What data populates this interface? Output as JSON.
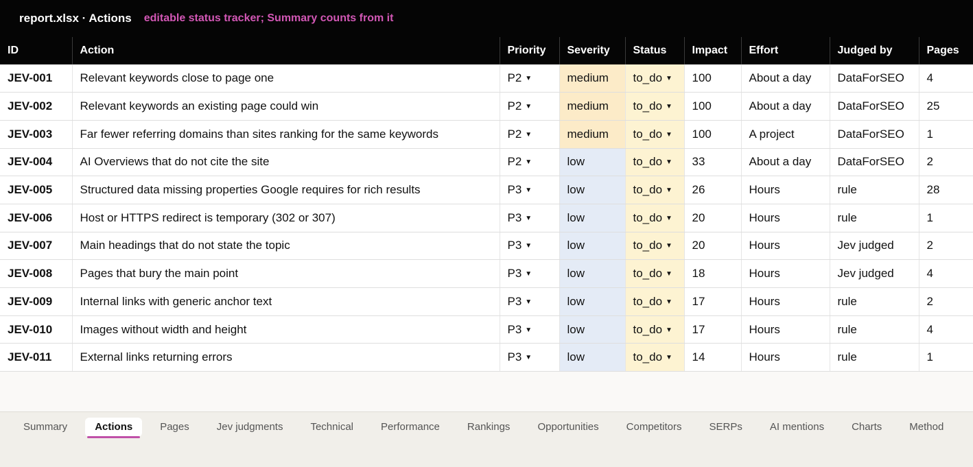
{
  "window": {
    "title": "report.xlsx · Actions",
    "note": "editable status tracker; Summary counts from it"
  },
  "colors": {
    "header_bg": "#050505",
    "note": "#d257b5",
    "severity_medium": "#fcebc8",
    "severity_low": "#e4ebf6",
    "status_cell": "#fdf3d2",
    "active_tab_underline": "#c050a8"
  },
  "table": {
    "columns": [
      "ID",
      "Action",
      "Priority",
      "Severity",
      "Status",
      "Impact",
      "Effort",
      "Judged by",
      "Pages"
    ],
    "dropdown_icon": "caret-down-icon",
    "rows": [
      {
        "id": "JEV-001",
        "action": "Relevant keywords close to page one",
        "priority": "P2",
        "severity": "medium",
        "status": "to_do",
        "impact": "100",
        "effort": "About a day",
        "judged_by": "DataForSEO",
        "pages": "4"
      },
      {
        "id": "JEV-002",
        "action": "Relevant keywords an existing page could win",
        "priority": "P2",
        "severity": "medium",
        "status": "to_do",
        "impact": "100",
        "effort": "About a day",
        "judged_by": "DataForSEO",
        "pages": "25"
      },
      {
        "id": "JEV-003",
        "action": "Far fewer referring domains than sites ranking for the same keywords",
        "priority": "P2",
        "severity": "medium",
        "status": "to_do",
        "impact": "100",
        "effort": "A project",
        "judged_by": "DataForSEO",
        "pages": "1"
      },
      {
        "id": "JEV-004",
        "action": "AI Overviews that do not cite the site",
        "priority": "P2",
        "severity": "low",
        "status": "to_do",
        "impact": "33",
        "effort": "About a day",
        "judged_by": "DataForSEO",
        "pages": "2"
      },
      {
        "id": "JEV-005",
        "action": "Structured data missing properties Google requires for rich results",
        "priority": "P3",
        "severity": "low",
        "status": "to_do",
        "impact": "26",
        "effort": "Hours",
        "judged_by": "rule",
        "pages": "28"
      },
      {
        "id": "JEV-006",
        "action": "Host or HTTPS redirect is temporary (302 or 307)",
        "priority": "P3",
        "severity": "low",
        "status": "to_do",
        "impact": "20",
        "effort": "Hours",
        "judged_by": "rule",
        "pages": "1"
      },
      {
        "id": "JEV-007",
        "action": "Main headings that do not state the topic",
        "priority": "P3",
        "severity": "low",
        "status": "to_do",
        "impact": "20",
        "effort": "Hours",
        "judged_by": "Jev judged",
        "pages": "2"
      },
      {
        "id": "JEV-008",
        "action": "Pages that bury the main point",
        "priority": "P3",
        "severity": "low",
        "status": "to_do",
        "impact": "18",
        "effort": "Hours",
        "judged_by": "Jev judged",
        "pages": "4"
      },
      {
        "id": "JEV-009",
        "action": "Internal links with generic anchor text",
        "priority": "P3",
        "severity": "low",
        "status": "to_do",
        "impact": "17",
        "effort": "Hours",
        "judged_by": "rule",
        "pages": "2"
      },
      {
        "id": "JEV-010",
        "action": "Images without width and height",
        "priority": "P3",
        "severity": "low",
        "status": "to_do",
        "impact": "17",
        "effort": "Hours",
        "judged_by": "rule",
        "pages": "4"
      },
      {
        "id": "JEV-011",
        "action": "External links returning errors",
        "priority": "P3",
        "severity": "low",
        "status": "to_do",
        "impact": "14",
        "effort": "Hours",
        "judged_by": "rule",
        "pages": "1"
      }
    ]
  },
  "sheet_tabs": {
    "active": "Actions",
    "items": [
      "Summary",
      "Actions",
      "Pages",
      "Jev judgments",
      "Technical",
      "Performance",
      "Rankings",
      "Opportunities",
      "Competitors",
      "SERPs",
      "AI mentions",
      "Charts",
      "Method"
    ]
  }
}
